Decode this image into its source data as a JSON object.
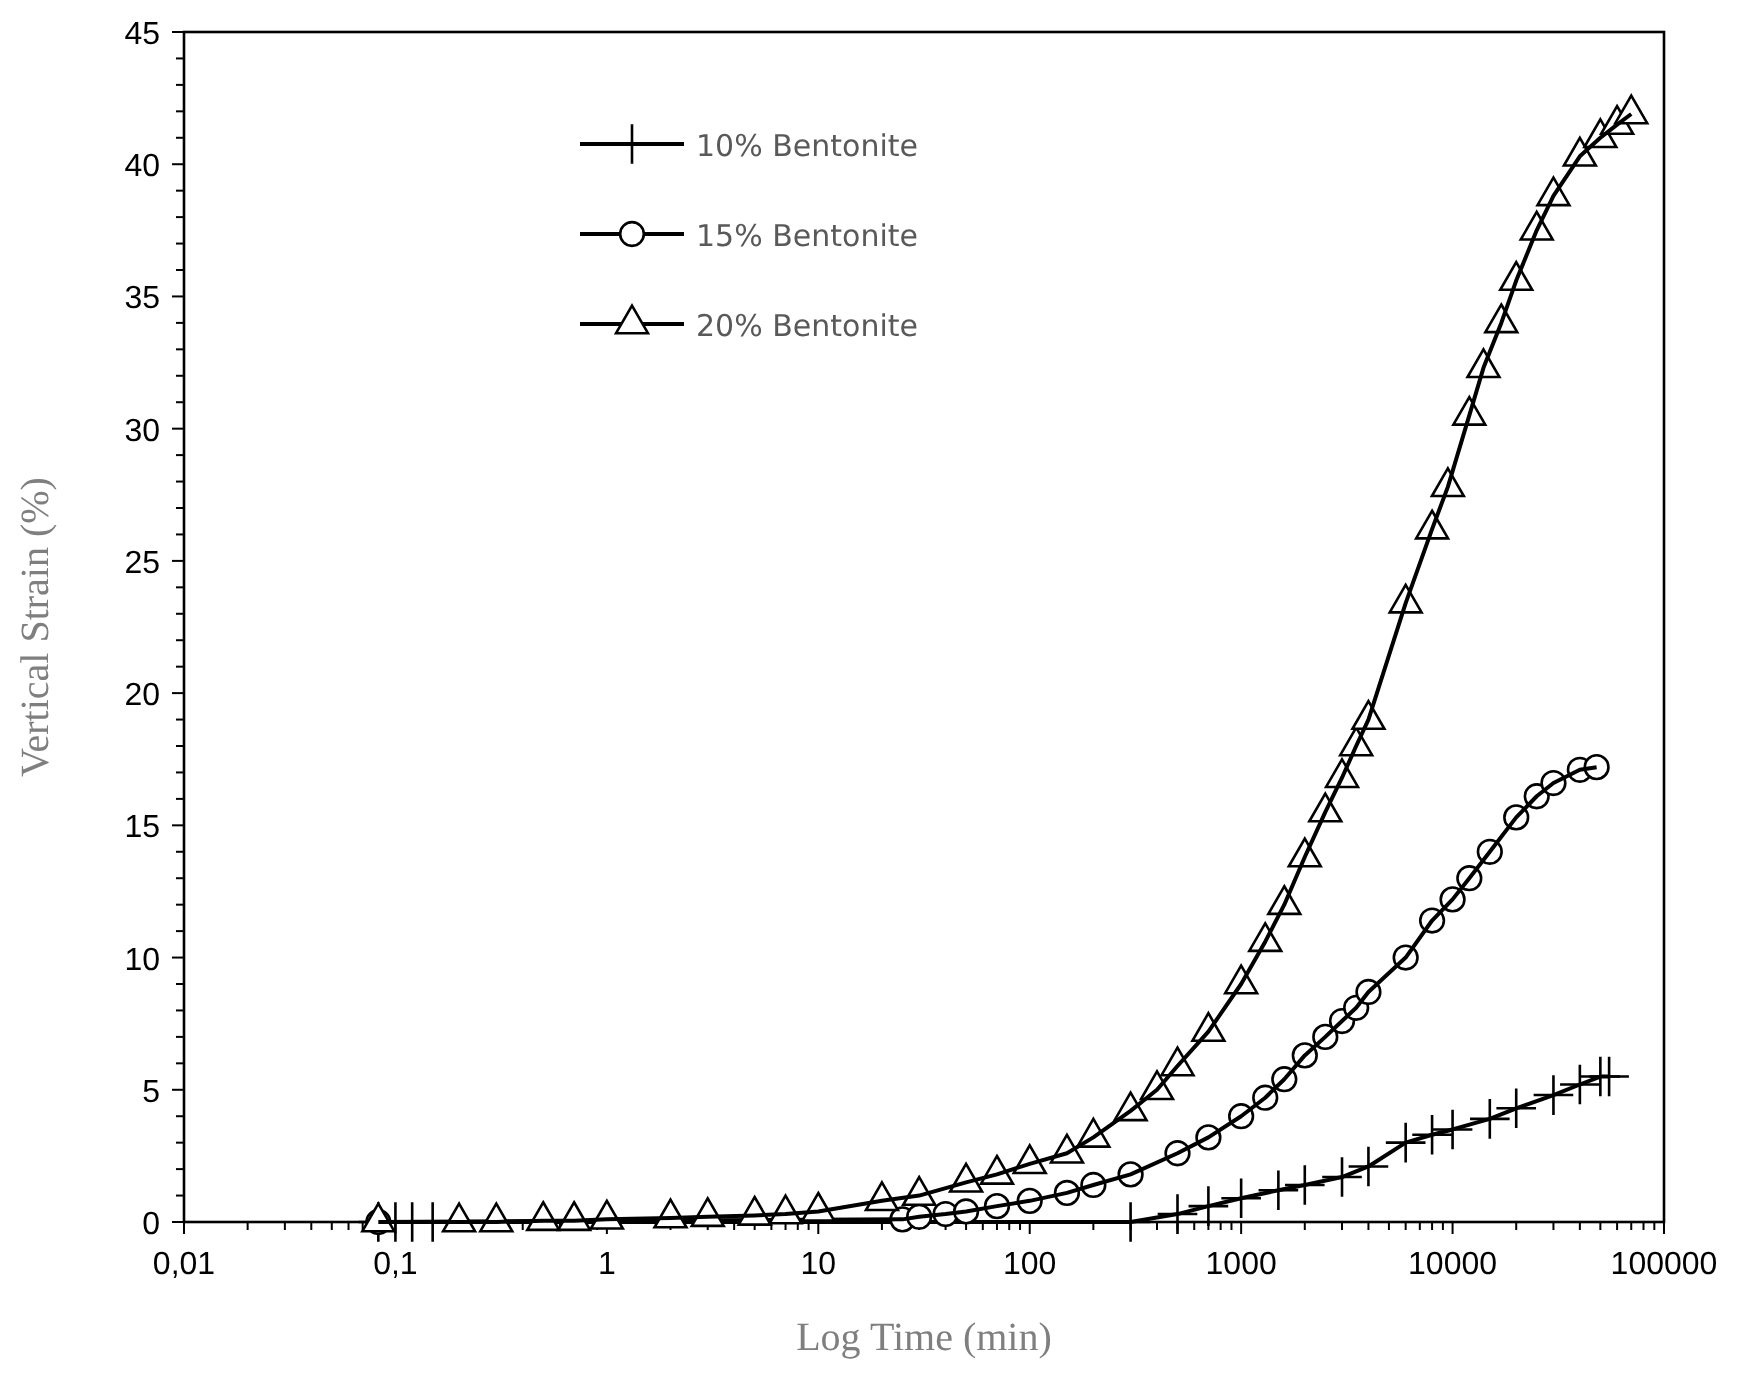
{
  "chart_data": {
    "type": "line",
    "xlabel": "Log Time (min)",
    "ylabel": "Vertical Strain (%)",
    "log": "x",
    "xlim": [
      0.01,
      100000
    ],
    "xticks": [
      {
        "value": 0.01,
        "label": "0,01"
      },
      {
        "value": 0.1,
        "label": "0,1"
      },
      1,
      10,
      100,
      1000,
      10000,
      100000
    ],
    "ylim": [
      0,
      45
    ],
    "yticks": [
      0,
      5,
      10,
      15,
      20,
      25,
      30,
      35,
      40,
      45
    ],
    "grid": false,
    "legend": "top",
    "line_style": "solid",
    "series": [
      {
        "name": "10% Bentonite",
        "color": "#000000",
        "marker": "cross",
        "x": [
          0.083,
          0.1,
          0.12,
          0.15,
          300,
          500,
          700,
          1000,
          1500,
          2000,
          3000,
          4000,
          6000,
          8000,
          10000,
          15000,
          20000,
          30000,
          40000,
          50000,
          55000
        ],
        "values": [
          0,
          0,
          0,
          0,
          0,
          0.3,
          0.6,
          0.9,
          1.2,
          1.4,
          1.7,
          2.1,
          3.0,
          3.3,
          3.5,
          3.9,
          4.3,
          4.8,
          5.2,
          5.5,
          5.5
        ]
      },
      {
        "name": "15% Bentonite",
        "color": "#000000",
        "marker": "circle",
        "x": [
          0.083,
          25,
          30,
          40,
          50,
          70,
          100,
          150,
          200,
          300,
          500,
          700,
          1000,
          1300,
          1600,
          2000,
          2500,
          3000,
          3500,
          4000,
          6000,
          8000,
          10000,
          12000,
          15000,
          20000,
          25000,
          30000,
          40000,
          48000
        ],
        "values": [
          0,
          0.1,
          0.2,
          0.3,
          0.4,
          0.6,
          0.8,
          1.1,
          1.4,
          1.8,
          2.6,
          3.2,
          4.0,
          4.7,
          5.4,
          6.3,
          7.0,
          7.6,
          8.1,
          8.7,
          10.0,
          11.4,
          12.2,
          13.0,
          14.0,
          15.3,
          16.1,
          16.6,
          17.1,
          17.2
        ]
      },
      {
        "name": "20% Bentonite",
        "color": "#000000",
        "marker": "triangle",
        "x": [
          0.083,
          0.2,
          0.3,
          0.5,
          0.7,
          1,
          2,
          3,
          5,
          7,
          10,
          20,
          30,
          50,
          70,
          100,
          150,
          200,
          300,
          400,
          500,
          700,
          1000,
          1300,
          1600,
          2000,
          2500,
          3000,
          3500,
          4000,
          6000,
          8000,
          9500,
          12000,
          14000,
          17000,
          20000,
          25000,
          30000,
          40000,
          50000,
          60000,
          70000
        ],
        "values": [
          0,
          0,
          0,
          0.05,
          0.05,
          0.1,
          0.15,
          0.2,
          0.25,
          0.3,
          0.4,
          0.8,
          1.0,
          1.5,
          1.8,
          2.2,
          2.6,
          3.2,
          4.2,
          5.0,
          5.9,
          7.2,
          9.0,
          10.6,
          12.0,
          13.8,
          15.5,
          16.8,
          18.0,
          19.0,
          23.4,
          26.2,
          27.8,
          30.5,
          32.3,
          34.0,
          35.6,
          37.5,
          38.8,
          40.3,
          41.0,
          41.5,
          41.9
        ]
      }
    ]
  }
}
